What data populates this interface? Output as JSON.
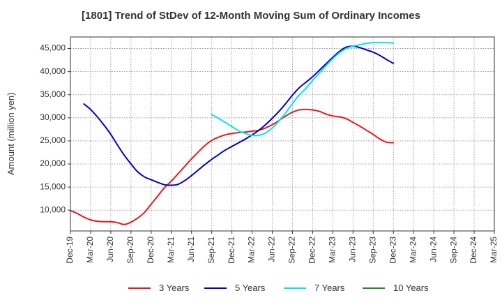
{
  "chart_data": {
    "type": "line",
    "title": "[1801]  Trend of StDev of 12-Month Moving Sum of Ordinary Incomes",
    "xlabel": "",
    "ylabel": "Amount (million yen)",
    "ylim": [
      5500,
      47500
    ],
    "yticks": [
      10000,
      15000,
      20000,
      25000,
      30000,
      35000,
      40000,
      45000
    ],
    "ytick_labels": [
      "10,000",
      "15,000",
      "20,000",
      "25,000",
      "30,000",
      "35,000",
      "40,000",
      "45,000"
    ],
    "x_tick_labels": [
      "Dec-19",
      "Mar-20",
      "Jun-20",
      "Sep-20",
      "Dec-20",
      "Mar-21",
      "Jun-21",
      "Sep-21",
      "Dec-21",
      "Mar-22",
      "Jun-22",
      "Sep-22",
      "Dec-22",
      "Mar-23",
      "Jun-23",
      "Sep-23",
      "Dec-23",
      "Mar-24",
      "Jun-24",
      "Sep-24",
      "Dec-24",
      "Mar-25"
    ],
    "grid": true,
    "legend_position": "bottom",
    "series": [
      {
        "name": "3 Years",
        "color": "#e41a1c",
        "values": [
          9900,
          9300,
          8500,
          7900,
          7600,
          7500,
          7500,
          7300,
          6900,
          7400,
          8300,
          9500,
          11300,
          13100,
          14900,
          16300,
          17900,
          19500,
          21100,
          22600,
          24000,
          25100,
          25800,
          26300,
          26600,
          26800,
          26900,
          27100,
          27300,
          27800,
          28500,
          29400,
          30400,
          31200,
          31700,
          31800,
          31700,
          31400,
          30800,
          30400,
          30200,
          29800,
          29000,
          28200,
          27300,
          26400,
          25400,
          24700,
          24600
        ]
      },
      {
        "name": "5 Years",
        "color": "#0000cd",
        "values": [
          null,
          null,
          33000,
          31800,
          30200,
          28400,
          26400,
          24100,
          21900,
          20000,
          18300,
          17200,
          16600,
          16000,
          15500,
          15400,
          15600,
          16400,
          17500,
          18700,
          19900,
          21000,
          22000,
          23000,
          23800,
          24600,
          25400,
          26300,
          27300,
          28500,
          29900,
          31400,
          33100,
          34900,
          36500,
          37700,
          38900,
          40300,
          41700,
          43100,
          44400,
          45300,
          45500,
          45200,
          44700,
          44200,
          43500,
          42600,
          41800
        ]
      },
      {
        "name": "7 Years",
        "color": "#00e5ee",
        "values": [
          null,
          null,
          null,
          null,
          null,
          null,
          null,
          null,
          null,
          null,
          null,
          null,
          null,
          null,
          null,
          null,
          null,
          null,
          null,
          null,
          null,
          30700,
          29900,
          29000,
          28100,
          27200,
          26600,
          26200,
          26200,
          26700,
          27800,
          29300,
          31100,
          33100,
          34900,
          36400,
          38100,
          39700,
          41300,
          42800,
          44100,
          45000,
          45500,
          45800,
          46100,
          46300,
          46300,
          46300,
          46200
        ]
      },
      {
        "name": "10 Years",
        "color": "#228b22",
        "values": []
      }
    ]
  }
}
